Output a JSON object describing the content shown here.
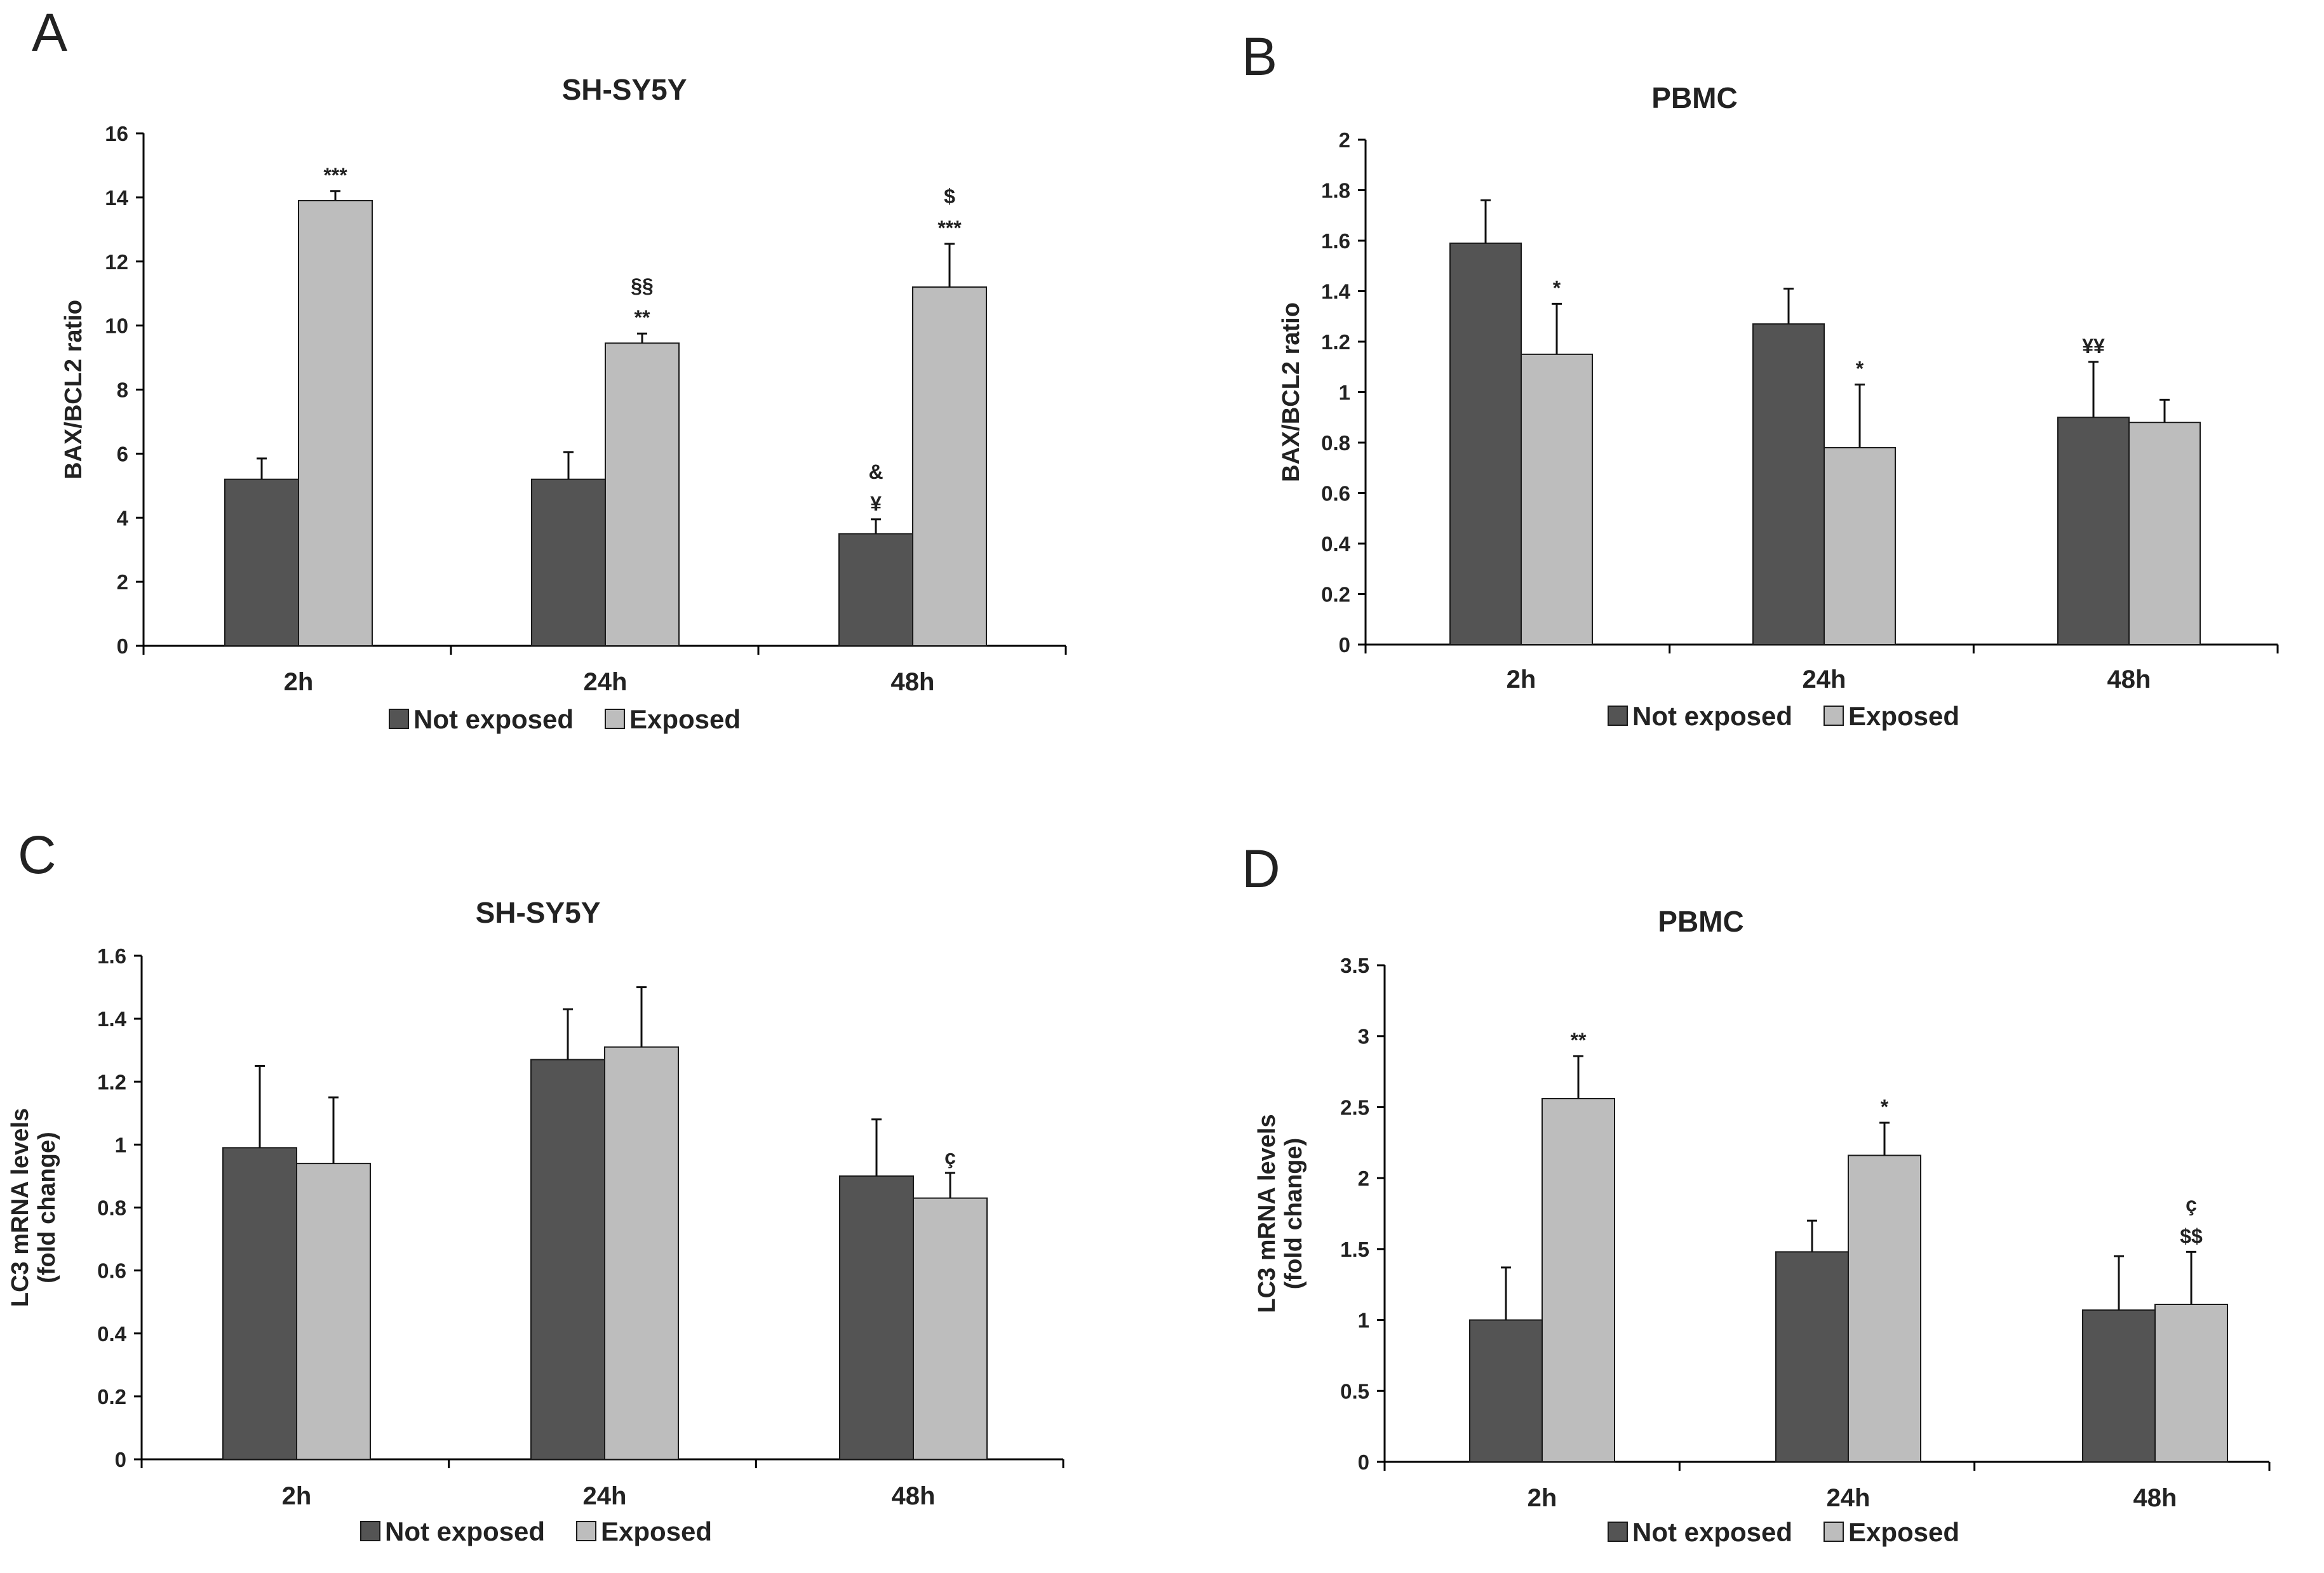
{
  "colors": {
    "not_exposed": "#545454",
    "exposed": "#bdbdbd",
    "axis": "#000000",
    "text": "#222222"
  },
  "chart_data": [
    {
      "panel": "A",
      "type": "bar",
      "title": "SH-SY5Y",
      "ylabel": [
        "BAX/BCL2 ratio"
      ],
      "xlabel": "",
      "categories": [
        "2h",
        "24h",
        "48h"
      ],
      "ylim": [
        0,
        16
      ],
      "ytick_labels": [
        "0",
        "2",
        "4",
        "6",
        "8",
        "10",
        "12",
        "14",
        "16"
      ],
      "series": [
        {
          "name": "Not exposed",
          "values": [
            5.2,
            5.2,
            3.5
          ],
          "errors": [
            0.65,
            0.85,
            0.45
          ]
        },
        {
          "name": "Exposed",
          "values": [
            13.9,
            9.45,
            11.2
          ],
          "errors": [
            0.3,
            0.3,
            1.35
          ]
        }
      ],
      "annotations": [
        {
          "category": 0,
          "series": 1,
          "lines": [
            "***"
          ]
        },
        {
          "category": 1,
          "series": 1,
          "lines": [
            "§§",
            "**"
          ]
        },
        {
          "category": 2,
          "series": 0,
          "lines": [
            "&",
            "¥"
          ]
        },
        {
          "category": 2,
          "series": 1,
          "lines": [
            "$",
            "***"
          ]
        }
      ],
      "legend": [
        "Not exposed",
        "Exposed"
      ],
      "legend_position": "bottom-center"
    },
    {
      "panel": "B",
      "type": "bar",
      "title": "PBMC",
      "ylabel": [
        "BAX/BCL2 ratio"
      ],
      "xlabel": "",
      "categories": [
        "2h",
        "24h",
        "48h"
      ],
      "ylim": [
        0,
        2
      ],
      "ytick_labels": [
        "0",
        "0.2",
        "0.4",
        "0.6",
        "0.8",
        "1",
        "1.2",
        "1.4",
        "1.6",
        "1.8",
        "2"
      ],
      "series": [
        {
          "name": "Not exposed",
          "values": [
            1.59,
            1.27,
            0.9
          ],
          "errors": [
            0.17,
            0.14,
            0.22
          ]
        },
        {
          "name": "Exposed",
          "values": [
            1.15,
            0.78,
            0.88
          ],
          "errors": [
            0.2,
            0.25,
            0.09
          ]
        }
      ],
      "annotations": [
        {
          "category": 0,
          "series": 1,
          "lines": [
            "*"
          ]
        },
        {
          "category": 1,
          "series": 1,
          "lines": [
            "*"
          ]
        },
        {
          "category": 2,
          "series": 0,
          "lines": [
            "¥¥"
          ]
        }
      ],
      "legend": [
        "Not exposed",
        "Exposed"
      ],
      "legend_position": "bottom-center"
    },
    {
      "panel": "C",
      "type": "bar",
      "title": "SH-SY5Y",
      "ylabel": [
        "LC3 mRNA levels",
        "(fold change)"
      ],
      "xlabel": "",
      "categories": [
        "2h",
        "24h",
        "48h"
      ],
      "ylim": [
        0,
        1.6
      ],
      "ytick_labels": [
        "0",
        "0.2",
        "0.4",
        "0.6",
        "0.8",
        "1",
        "1.2",
        "1.4",
        "1.6"
      ],
      "series": [
        {
          "name": "Not exposed",
          "values": [
            0.99,
            1.27,
            0.9
          ],
          "errors": [
            0.26,
            0.16,
            0.18
          ]
        },
        {
          "name": "Exposed",
          "values": [
            0.94,
            1.31,
            0.83
          ],
          "errors": [
            0.21,
            0.19,
            0.08
          ]
        }
      ],
      "annotations": [
        {
          "category": 2,
          "series": 1,
          "lines": [
            "ç"
          ]
        }
      ],
      "legend": [
        "Not exposed",
        "Exposed"
      ],
      "legend_position": "bottom-center"
    },
    {
      "panel": "D",
      "type": "bar",
      "title": "PBMC",
      "ylabel": [
        "LC3 mRNA levels",
        "(fold change)"
      ],
      "xlabel": "",
      "categories": [
        "2h",
        "24h",
        "48h"
      ],
      "ylim": [
        0,
        3.5
      ],
      "ytick_labels": [
        "0",
        "0.5",
        "1",
        "1.5",
        "2",
        "2.5",
        "3",
        "3.5"
      ],
      "series": [
        {
          "name": "Not exposed",
          "values": [
            1.0,
            1.48,
            1.07
          ],
          "errors": [
            0.37,
            0.22,
            0.38
          ]
        },
        {
          "name": "Exposed",
          "values": [
            2.56,
            2.16,
            1.11
          ],
          "errors": [
            0.3,
            0.23,
            0.37
          ]
        }
      ],
      "annotations": [
        {
          "category": 0,
          "series": 1,
          "lines": [
            "**"
          ]
        },
        {
          "category": 1,
          "series": 1,
          "lines": [
            "*"
          ]
        },
        {
          "category": 2,
          "series": 1,
          "lines": [
            "ç",
            "$$"
          ]
        }
      ],
      "legend": [
        "Not exposed",
        "Exposed"
      ],
      "legend_position": "bottom-center"
    }
  ]
}
